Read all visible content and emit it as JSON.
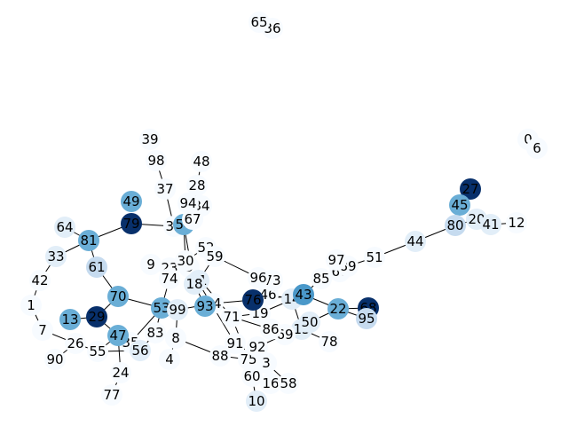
{
  "palette": {
    "c0": "#f7fbff",
    "c1": "#e2eef8",
    "c2": "#c6dbef",
    "c3": "#6aaed6",
    "c4": "#4a98c9",
    "c5": "#08306b"
  },
  "nodes": [
    {
      "id": "0",
      "c": "c0"
    },
    {
      "id": "1",
      "c": "c0"
    },
    {
      "id": "3",
      "c": "c0"
    },
    {
      "id": "4",
      "c": "c0"
    },
    {
      "id": "5",
      "c": "c0"
    },
    {
      "id": "6",
      "c": "c0"
    },
    {
      "id": "7",
      "c": "c0"
    },
    {
      "id": "8",
      "c": "c0"
    },
    {
      "id": "9",
      "c": "c0"
    },
    {
      "id": "10",
      "c": "c1"
    },
    {
      "id": "11",
      "c": "c1"
    },
    {
      "id": "12",
      "c": "c0"
    },
    {
      "id": "13",
      "c": "c3"
    },
    {
      "id": "14",
      "c": "c1"
    },
    {
      "id": "15",
      "c": "c1"
    },
    {
      "id": "16",
      "c": "c0"
    },
    {
      "id": "18",
      "c": "c1"
    },
    {
      "id": "19",
      "c": "c0"
    },
    {
      "id": "20",
      "c": "c1"
    },
    {
      "id": "22",
      "c": "c3"
    },
    {
      "id": "23",
      "c": "c0"
    },
    {
      "id": "24",
      "c": "c0"
    },
    {
      "id": "26",
      "c": "c0"
    },
    {
      "id": "27",
      "c": "c5"
    },
    {
      "id": "28",
      "c": "c0"
    },
    {
      "id": "29",
      "c": "c5"
    },
    {
      "id": "30",
      "c": "c0"
    },
    {
      "id": "32",
      "c": "c0"
    },
    {
      "id": "33",
      "c": "c1"
    },
    {
      "id": "34",
      "c": "c0"
    },
    {
      "id": "35",
      "c": "c0"
    },
    {
      "id": "36",
      "c": "c0"
    },
    {
      "id": "37",
      "c": "c0"
    },
    {
      "id": "39",
      "c": "c0"
    },
    {
      "id": "41",
      "c": "c1"
    },
    {
      "id": "42",
      "c": "c0"
    },
    {
      "id": "43",
      "c": "c4"
    },
    {
      "id": "44",
      "c": "c1"
    },
    {
      "id": "45",
      "c": "c3"
    },
    {
      "id": "46",
      "c": "c0"
    },
    {
      "id": "47",
      "c": "c3"
    },
    {
      "id": "48",
      "c": "c0"
    },
    {
      "id": "49",
      "c": "c3"
    },
    {
      "id": "50",
      "c": "c1"
    },
    {
      "id": "51",
      "c": "c0"
    },
    {
      "id": "52",
      "c": "c0"
    },
    {
      "id": "53",
      "c": "c3"
    },
    {
      "id": "54",
      "c": "c3"
    },
    {
      "id": "55",
      "c": "c0"
    },
    {
      "id": "56",
      "c": "c1"
    },
    {
      "id": "58",
      "c": "c0"
    },
    {
      "id": "59",
      "c": "c0"
    },
    {
      "id": "60",
      "c": "c0"
    },
    {
      "id": "61",
      "c": "c2"
    },
    {
      "id": "64",
      "c": "c1"
    },
    {
      "id": "65",
      "c": "c0"
    },
    {
      "id": "66",
      "c": "c0"
    },
    {
      "id": "67",
      "c": "c0"
    },
    {
      "id": "68",
      "c": "c5"
    },
    {
      "id": "69",
      "c": "c0"
    },
    {
      "id": "70",
      "c": "c3"
    },
    {
      "id": "71",
      "c": "c0"
    },
    {
      "id": "73",
      "c": "c0"
    },
    {
      "id": "74",
      "c": "c0"
    },
    {
      "id": "75",
      "c": "c0"
    },
    {
      "id": "76",
      "c": "c5"
    },
    {
      "id": "77",
      "c": "c0"
    },
    {
      "id": "78",
      "c": "c0"
    },
    {
      "id": "79",
      "c": "c5"
    },
    {
      "id": "80",
      "c": "c2"
    },
    {
      "id": "81",
      "c": "c3"
    },
    {
      "id": "83",
      "c": "c0"
    },
    {
      "id": "84",
      "c": "c0"
    },
    {
      "id": "85",
      "c": "c0"
    },
    {
      "id": "86",
      "c": "c0"
    },
    {
      "id": "88",
      "c": "c0"
    },
    {
      "id": "89",
      "c": "c0"
    },
    {
      "id": "90",
      "c": "c0"
    },
    {
      "id": "91",
      "c": "c0"
    },
    {
      "id": "92",
      "c": "c0"
    },
    {
      "id": "93",
      "c": "c3"
    },
    {
      "id": "94",
      "c": "c0"
    },
    {
      "id": "95",
      "c": "c2"
    },
    {
      "id": "96",
      "c": "c0"
    },
    {
      "id": "97",
      "c": "c0"
    },
    {
      "id": "98",
      "c": "c0"
    },
    {
      "id": "99",
      "c": "c1"
    }
  ],
  "edges": [
    [
      "33",
      "81"
    ],
    [
      "33",
      "42"
    ],
    [
      "42",
      "1"
    ],
    [
      "1",
      "7"
    ],
    [
      "7",
      "26"
    ],
    [
      "26",
      "90"
    ],
    [
      "26",
      "55"
    ],
    [
      "55",
      "56"
    ],
    [
      "81",
      "64"
    ],
    [
      "81",
      "79"
    ],
    [
      "81",
      "61"
    ],
    [
      "61",
      "70"
    ],
    [
      "70",
      "29"
    ],
    [
      "70",
      "53"
    ],
    [
      "13",
      "29"
    ],
    [
      "29",
      "47"
    ],
    [
      "47",
      "55"
    ],
    [
      "47",
      "35"
    ],
    [
      "47",
      "24"
    ],
    [
      "24",
      "77"
    ],
    [
      "53",
      "35"
    ],
    [
      "53",
      "83"
    ],
    [
      "53",
      "74"
    ],
    [
      "53",
      "99"
    ],
    [
      "83",
      "56"
    ],
    [
      "79",
      "32"
    ],
    [
      "32",
      "37"
    ],
    [
      "37",
      "98"
    ],
    [
      "32",
      "54"
    ],
    [
      "54",
      "94"
    ],
    [
      "54",
      "34"
    ],
    [
      "54",
      "67"
    ],
    [
      "28",
      "48"
    ],
    [
      "28",
      "67"
    ],
    [
      "54",
      "30"
    ],
    [
      "54",
      "18"
    ],
    [
      "30",
      "52"
    ],
    [
      "30",
      "23"
    ],
    [
      "30",
      "5"
    ],
    [
      "5",
      "18"
    ],
    [
      "5",
      "11"
    ],
    [
      "5",
      "71"
    ],
    [
      "5",
      "91"
    ],
    [
      "18",
      "93"
    ],
    [
      "11",
      "59"
    ],
    [
      "59",
      "96"
    ],
    [
      "96",
      "73"
    ],
    [
      "73",
      "46"
    ],
    [
      "46",
      "14"
    ],
    [
      "14",
      "43"
    ],
    [
      "43",
      "85"
    ],
    [
      "43",
      "22"
    ],
    [
      "43",
      "19"
    ],
    [
      "76",
      "84"
    ],
    [
      "76",
      "19"
    ],
    [
      "76",
      "43"
    ],
    [
      "84",
      "99"
    ],
    [
      "99",
      "8"
    ],
    [
      "8",
      "4"
    ],
    [
      "8",
      "88"
    ],
    [
      "88",
      "75"
    ],
    [
      "75",
      "71"
    ],
    [
      "71",
      "86"
    ],
    [
      "86",
      "69"
    ],
    [
      "69",
      "15"
    ],
    [
      "69",
      "92"
    ],
    [
      "92",
      "3"
    ],
    [
      "3",
      "16"
    ],
    [
      "3",
      "58"
    ],
    [
      "16",
      "60"
    ],
    [
      "60",
      "10"
    ],
    [
      "22",
      "50"
    ],
    [
      "22",
      "95"
    ],
    [
      "22",
      "68"
    ],
    [
      "50",
      "15"
    ],
    [
      "15",
      "78"
    ],
    [
      "15",
      "14"
    ],
    [
      "66",
      "89"
    ],
    [
      "89",
      "51"
    ],
    [
      "51",
      "44"
    ],
    [
      "44",
      "80"
    ],
    [
      "80",
      "20"
    ],
    [
      "80",
      "45"
    ],
    [
      "45",
      "27"
    ],
    [
      "41",
      "12"
    ],
    [
      "41",
      "20"
    ],
    [
      "65",
      "36"
    ],
    [
      "0",
      "6"
    ],
    [
      "9",
      "23"
    ],
    [
      "93",
      "84"
    ],
    [
      "19",
      "71"
    ]
  ]
}
